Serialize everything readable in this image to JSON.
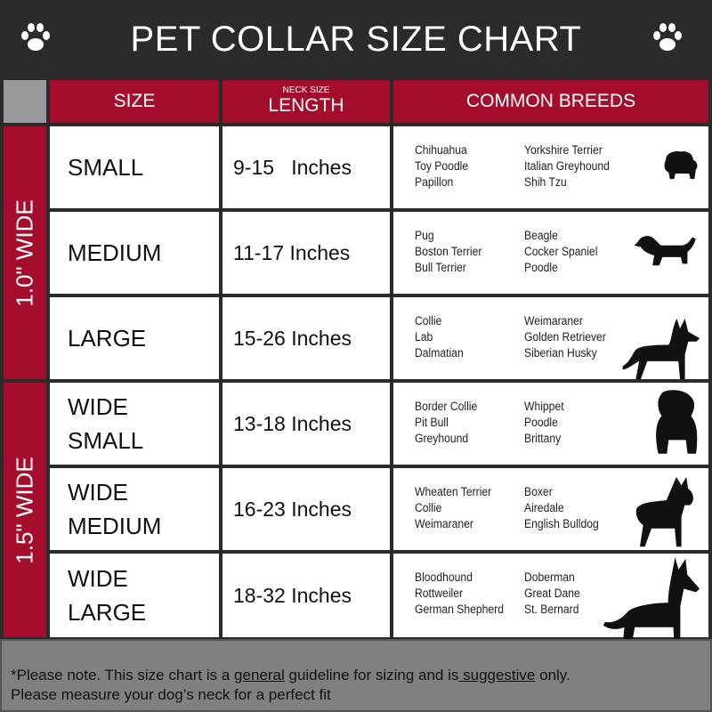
{
  "title": "PET COLLAR SIZE CHART",
  "colors": {
    "header_bg": "#2b2b2b",
    "accent_red": "#a50d2c",
    "footer_gray": "#808083"
  },
  "columns": {
    "size": "SIZE",
    "length_top": "NECK SIZE",
    "length": "LENGTH",
    "breeds": "COMMON BREEDS"
  },
  "groups": [
    {
      "label": "1.0\" WIDE"
    },
    {
      "label": "1.5\" WIDE"
    }
  ],
  "rows": [
    {
      "size": "SMALL",
      "length": "9-15   Inches",
      "breeds_a": [
        "Chihuahua",
        "Toy Poodle",
        "Papillon"
      ],
      "breeds_b": [
        "Yorkshire Terrier",
        "Italian Greyhound",
        "Shih Tzu"
      ],
      "icon": "small-dog-icon"
    },
    {
      "size": "MEDIUM",
      "length": "11-17 Inches",
      "breeds_a": [
        "Pug",
        "Boston Terrier",
        "Bull Terrier"
      ],
      "breeds_b": [
        "Beagle",
        "Cocker Spaniel",
        "Poodle"
      ],
      "icon": "dachshund-icon"
    },
    {
      "size": "LARGE",
      "length": "15-26 Inches",
      "breeds_a": [
        "Collie",
        "Lab",
        "Dalmatian"
      ],
      "breeds_b": [
        "Weimaraner",
        "Golden Retriever",
        "Siberian Husky"
      ],
      "icon": "shepherd-dog-icon"
    },
    {
      "size": "WIDE SMALL",
      "length": "13-18 Inches",
      "breeds_a": [
        "Border Collie",
        "Pit Bull",
        "Greyhound"
      ],
      "breeds_b": [
        "Whippet",
        "Poodle",
        "Brittany"
      ],
      "icon": "bulldog-icon"
    },
    {
      "size": "WIDE MEDIUM",
      "length": "16-23 Inches",
      "breeds_a": [
        "Wheaten Terrier",
        "Collie",
        "Weimaraner"
      ],
      "breeds_b": [
        "Boxer",
        "Airedale",
        "English Bulldog"
      ],
      "icon": "pitbull-icon"
    },
    {
      "size": "WIDE LARGE",
      "length": "18-32 Inches",
      "breeds_a": [
        "Bloodhound",
        "Rottweiler",
        "German Shepherd"
      ],
      "breeds_b": [
        "Doberman",
        "Great Dane",
        "St. Bernard"
      ],
      "icon": "doberman-icon"
    }
  ],
  "footer": {
    "p1": "*Please note. This size chart is a ",
    "u1": "general",
    "p2": " guideline for sizing and is",
    "u2": " suggestive",
    "p3": " only.",
    "line2": "Please measure your dog’s neck for a perfect fit"
  }
}
